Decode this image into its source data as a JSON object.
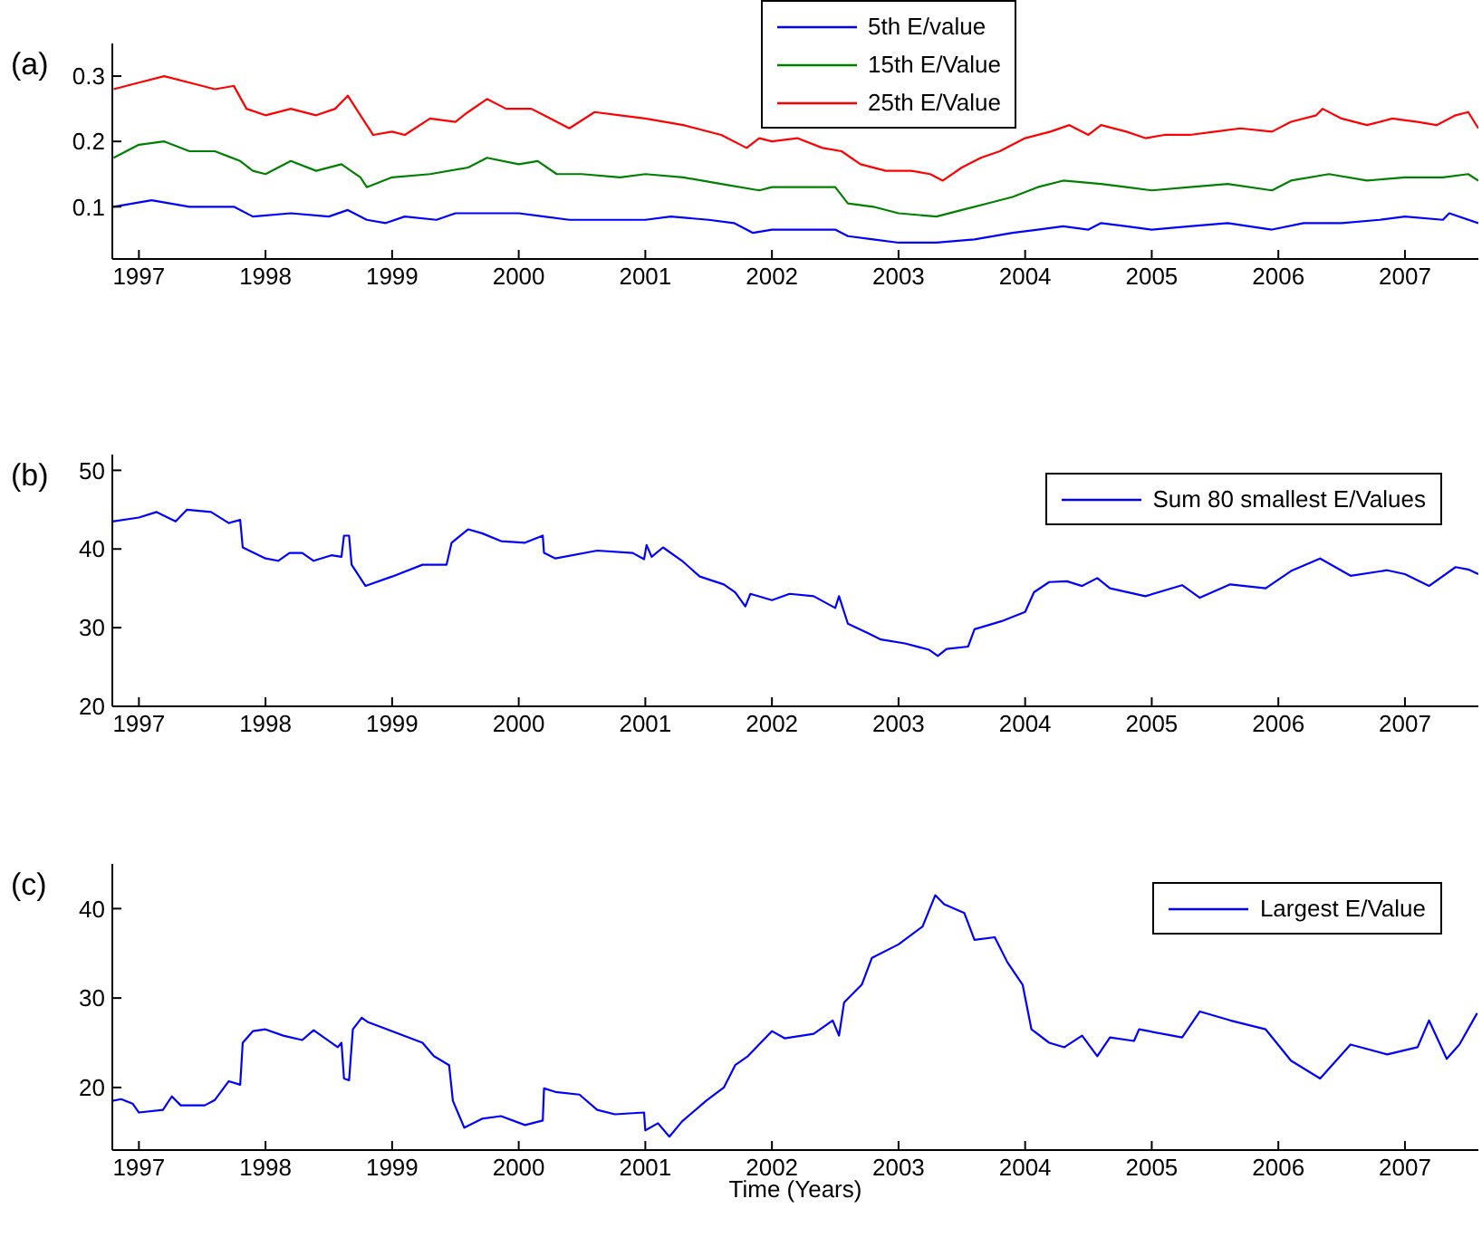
{
  "chart_data": [
    {
      "type": "line",
      "title": "(a)",
      "xlim": [
        1996.79,
        2007.58
      ],
      "xticks": [
        1997,
        1998,
        1999,
        2000,
        2001,
        2002,
        2003,
        2004,
        2005,
        2006,
        2007
      ],
      "ylim": [
        0.02,
        0.35
      ],
      "yticks": [
        0.1,
        0.2,
        0.3
      ],
      "legend": "top",
      "marker": "none",
      "line_style": "solid",
      "series": [
        {
          "name": "5th E/value",
          "color": "#0000ff",
          "x": [
            1996.8,
            1997.1,
            1997.4,
            1997.75,
            1997.9,
            1998.2,
            1998.5,
            1998.65,
            1998.8,
            1998.95,
            1999.1,
            1999.35,
            1999.5,
            1999.8,
            2000.0,
            2000.2,
            2000.4,
            2000.7,
            2001.0,
            2001.2,
            2001.5,
            2001.7,
            2001.85,
            2002.0,
            2002.3,
            2002.5,
            2002.6,
            2002.8,
            2003.0,
            2003.3,
            2003.6,
            2003.9,
            2004.1,
            2004.3,
            2004.5,
            2004.6,
            2004.8,
            2005.0,
            2005.3,
            2005.6,
            2005.95,
            2006.2,
            2006.5,
            2006.8,
            2007.0,
            2007.3,
            2007.35,
            2007.58
          ],
          "values": [
            0.1,
            0.11,
            0.1,
            0.1,
            0.085,
            0.09,
            0.085,
            0.095,
            0.08,
            0.075,
            0.085,
            0.08,
            0.09,
            0.09,
            0.09,
            0.085,
            0.08,
            0.08,
            0.08,
            0.085,
            0.08,
            0.075,
            0.06,
            0.065,
            0.065,
            0.065,
            0.055,
            0.05,
            0.045,
            0.045,
            0.05,
            0.06,
            0.065,
            0.07,
            0.065,
            0.075,
            0.07,
            0.065,
            0.07,
            0.075,
            0.065,
            0.075,
            0.075,
            0.08,
            0.085,
            0.08,
            0.09,
            0.075
          ]
        },
        {
          "name": "15th E/Value",
          "color": "#008000",
          "x": [
            1996.8,
            1997.0,
            1997.2,
            1997.4,
            1997.6,
            1997.8,
            1997.9,
            1998.0,
            1998.2,
            1998.4,
            1998.6,
            1998.75,
            1998.8,
            1999.0,
            1999.3,
            1999.6,
            1999.75,
            2000.0,
            2000.15,
            2000.3,
            2000.5,
            2000.8,
            2001.0,
            2001.3,
            2001.6,
            2001.9,
            2002.0,
            2002.3,
            2002.5,
            2002.6,
            2002.8,
            2003.0,
            2003.3,
            2003.5,
            2003.7,
            2003.9,
            2004.1,
            2004.3,
            2004.6,
            2004.8,
            2005.0,
            2005.3,
            2005.6,
            2005.95,
            2006.1,
            2006.4,
            2006.7,
            2007.0,
            2007.3,
            2007.5,
            2007.58
          ],
          "values": [
            0.175,
            0.195,
            0.2,
            0.185,
            0.185,
            0.17,
            0.155,
            0.15,
            0.17,
            0.155,
            0.165,
            0.145,
            0.13,
            0.145,
            0.15,
            0.16,
            0.175,
            0.165,
            0.17,
            0.15,
            0.15,
            0.145,
            0.15,
            0.145,
            0.135,
            0.125,
            0.13,
            0.13,
            0.13,
            0.105,
            0.1,
            0.09,
            0.085,
            0.095,
            0.105,
            0.115,
            0.13,
            0.14,
            0.135,
            0.13,
            0.125,
            0.13,
            0.135,
            0.125,
            0.14,
            0.15,
            0.14,
            0.145,
            0.145,
            0.15,
            0.14
          ]
        },
        {
          "name": "25th E/Value",
          "color": "#ff0000",
          "x": [
            1996.8,
            1997.0,
            1997.2,
            1997.4,
            1997.6,
            1997.75,
            1997.85,
            1998.0,
            1998.2,
            1998.4,
            1998.55,
            1998.65,
            1998.75,
            1998.85,
            1999.0,
            1999.1,
            1999.3,
            1999.5,
            1999.6,
            1999.75,
            1999.9,
            2000.1,
            2000.2,
            2000.4,
            2000.6,
            2000.8,
            2001.0,
            2001.3,
            2001.6,
            2001.8,
            2001.9,
            2002.0,
            2002.2,
            2002.4,
            2002.55,
            2002.7,
            2002.9,
            2003.1,
            2003.25,
            2003.35,
            2003.5,
            2003.65,
            2003.8,
            2004.0,
            2004.2,
            2004.35,
            2004.5,
            2004.6,
            2004.8,
            2004.95,
            2005.1,
            2005.3,
            2005.5,
            2005.7,
            2005.95,
            2006.1,
            2006.3,
            2006.35,
            2006.5,
            2006.7,
            2006.9,
            2007.1,
            2007.25,
            2007.4,
            2007.5,
            2007.58
          ],
          "values": [
            0.28,
            0.29,
            0.3,
            0.29,
            0.28,
            0.285,
            0.25,
            0.24,
            0.25,
            0.24,
            0.25,
            0.27,
            0.24,
            0.21,
            0.215,
            0.21,
            0.235,
            0.23,
            0.245,
            0.265,
            0.25,
            0.25,
            0.24,
            0.22,
            0.245,
            0.24,
            0.235,
            0.225,
            0.21,
            0.19,
            0.205,
            0.2,
            0.205,
            0.19,
            0.185,
            0.165,
            0.155,
            0.155,
            0.15,
            0.14,
            0.16,
            0.175,
            0.185,
            0.205,
            0.215,
            0.225,
            0.21,
            0.225,
            0.215,
            0.205,
            0.21,
            0.21,
            0.215,
            0.22,
            0.215,
            0.23,
            0.24,
            0.25,
            0.235,
            0.225,
            0.235,
            0.23,
            0.225,
            0.24,
            0.245,
            0.22
          ]
        }
      ]
    },
    {
      "type": "line",
      "title": "(b)",
      "xlim": [
        1996.79,
        2007.58
      ],
      "xticks": [
        1997,
        1998,
        1999,
        2000,
        2001,
        2002,
        2003,
        2004,
        2005,
        2006,
        2007
      ],
      "ylim": [
        20,
        52
      ],
      "yticks": [
        20,
        30,
        40,
        50
      ],
      "legend": "top right",
      "marker": "none",
      "line_style": "solid",
      "series": [
        {
          "name": "Sum 80 smallest E/Values",
          "color": "#0000ff",
          "x": [
            1996.79,
            1997.0,
            1997.14,
            1997.29,
            1997.38,
            1997.57,
            1997.71,
            1997.8,
            1997.82,
            1998.0,
            1998.1,
            1998.19,
            1998.29,
            1998.38,
            1998.52,
            1998.6,
            1998.62,
            1998.66,
            1998.68,
            1998.79,
            1999.0,
            1999.24,
            1999.43,
            1999.47,
            1999.6,
            1999.71,
            1999.86,
            2000.05,
            2000.19,
            2000.2,
            2000.29,
            2000.62,
            2000.9,
            2000.99,
            2001.01,
            2001.05,
            2001.14,
            2001.29,
            2001.43,
            2001.62,
            2001.71,
            2001.79,
            2001.83,
            2002.0,
            2002.14,
            2002.33,
            2002.5,
            2002.53,
            2002.6,
            2002.76,
            2002.86,
            2003.05,
            2003.24,
            2003.31,
            2003.38,
            2003.55,
            2003.6,
            2003.81,
            2004.0,
            2004.07,
            2004.19,
            2004.33,
            2004.45,
            2004.57,
            2004.67,
            2004.95,
            2005.24,
            2005.38,
            2005.62,
            2005.9,
            2006.1,
            2006.33,
            2006.57,
            2006.86,
            2007.0,
            2007.19,
            2007.4,
            2007.5,
            2007.58
          ],
          "values": [
            43.5,
            44,
            44.7,
            43.5,
            45,
            44.7,
            43.3,
            43.7,
            40.2,
            38.8,
            38.5,
            39.5,
            39.5,
            38.5,
            39.2,
            39,
            41.7,
            41.7,
            38,
            35.3,
            36.5,
            38,
            38,
            40.8,
            42.5,
            42,
            41,
            40.8,
            41.7,
            39.5,
            38.8,
            39.8,
            39.5,
            38.7,
            40.5,
            39,
            40.2,
            38.5,
            36.5,
            35.5,
            34.5,
            32.7,
            34.3,
            33.5,
            34.3,
            34,
            32.5,
            34,
            30.5,
            29.3,
            28.5,
            28,
            27.2,
            26.4,
            27.3,
            27.6,
            29.8,
            30.8,
            32,
            34.5,
            35.8,
            35.9,
            35.3,
            36.3,
            35,
            34,
            35.4,
            33.8,
            35.5,
            35,
            37.2,
            38.8,
            36.6,
            37.3,
            36.8,
            35.3,
            37.7,
            37.4,
            36.8
          ]
        }
      ]
    },
    {
      "type": "line",
      "title": "(c)",
      "xlabel": "Time (Years)",
      "xlim": [
        1996.79,
        2007.58
      ],
      "xticks": [
        1997,
        1998,
        1999,
        2000,
        2001,
        2002,
        2003,
        2004,
        2005,
        2006,
        2007
      ],
      "ylim": [
        13,
        45
      ],
      "yticks": [
        20,
        30,
        40
      ],
      "legend": "top right",
      "marker": "none",
      "line_style": "solid",
      "series": [
        {
          "name": "Largest E/Value",
          "color": "#0000ff",
          "x": [
            1996.79,
            1996.86,
            1996.95,
            1997.0,
            1997.19,
            1997.26,
            1997.33,
            1997.52,
            1997.6,
            1997.71,
            1997.8,
            1997.82,
            1997.9,
            1998.0,
            1998.14,
            1998.29,
            1998.38,
            1998.57,
            1998.6,
            1998.62,
            1998.66,
            1998.69,
            1998.76,
            1998.81,
            1999.0,
            1999.24,
            1999.33,
            1999.45,
            1999.48,
            1999.57,
            1999.71,
            1999.86,
            2000.05,
            2000.19,
            2000.2,
            2000.29,
            2000.48,
            2000.62,
            2000.76,
            2000.99,
            2001.0,
            2001.1,
            2001.19,
            2001.29,
            2001.48,
            2001.62,
            2001.71,
            2001.81,
            2002.0,
            2002.1,
            2002.33,
            2002.48,
            2002.53,
            2002.57,
            2002.71,
            2002.79,
            2003.0,
            2003.19,
            2003.29,
            2003.36,
            2003.52,
            2003.6,
            2003.76,
            2003.86,
            2003.98,
            2004.05,
            2004.19,
            2004.31,
            2004.45,
            2004.57,
            2004.67,
            2004.86,
            2004.9,
            2005.24,
            2005.38,
            2005.62,
            2005.9,
            2006.1,
            2006.33,
            2006.57,
            2006.86,
            2007.1,
            2007.19,
            2007.33,
            2007.43,
            2007.57
          ],
          "values": [
            18.5,
            18.7,
            18.2,
            17.2,
            17.5,
            19,
            18,
            18,
            18.6,
            20.7,
            20.3,
            25,
            26.3,
            26.5,
            25.8,
            25.3,
            26.4,
            24.5,
            25,
            21,
            20.8,
            26.5,
            27.8,
            27.3,
            26.3,
            25,
            23.5,
            22.5,
            18.5,
            15.5,
            16.5,
            16.8,
            15.8,
            16.3,
            19.9,
            19.5,
            19.2,
            17.5,
            17,
            17.2,
            15.2,
            16,
            14.5,
            16.2,
            18.5,
            20,
            22.5,
            23.5,
            26.3,
            25.5,
            26,
            27.5,
            25.8,
            29.5,
            31.5,
            34.5,
            36,
            38,
            41.5,
            40.5,
            39.5,
            36.5,
            36.8,
            34,
            31.5,
            26.5,
            25,
            24.5,
            25.8,
            23.5,
            25.6,
            25.2,
            26.5,
            25.6,
            28.5,
            27.5,
            26.5,
            23,
            21,
            24.8,
            23.7,
            24.5,
            27.5,
            23.2,
            24.8,
            28.3
          ]
        }
      ]
    }
  ]
}
